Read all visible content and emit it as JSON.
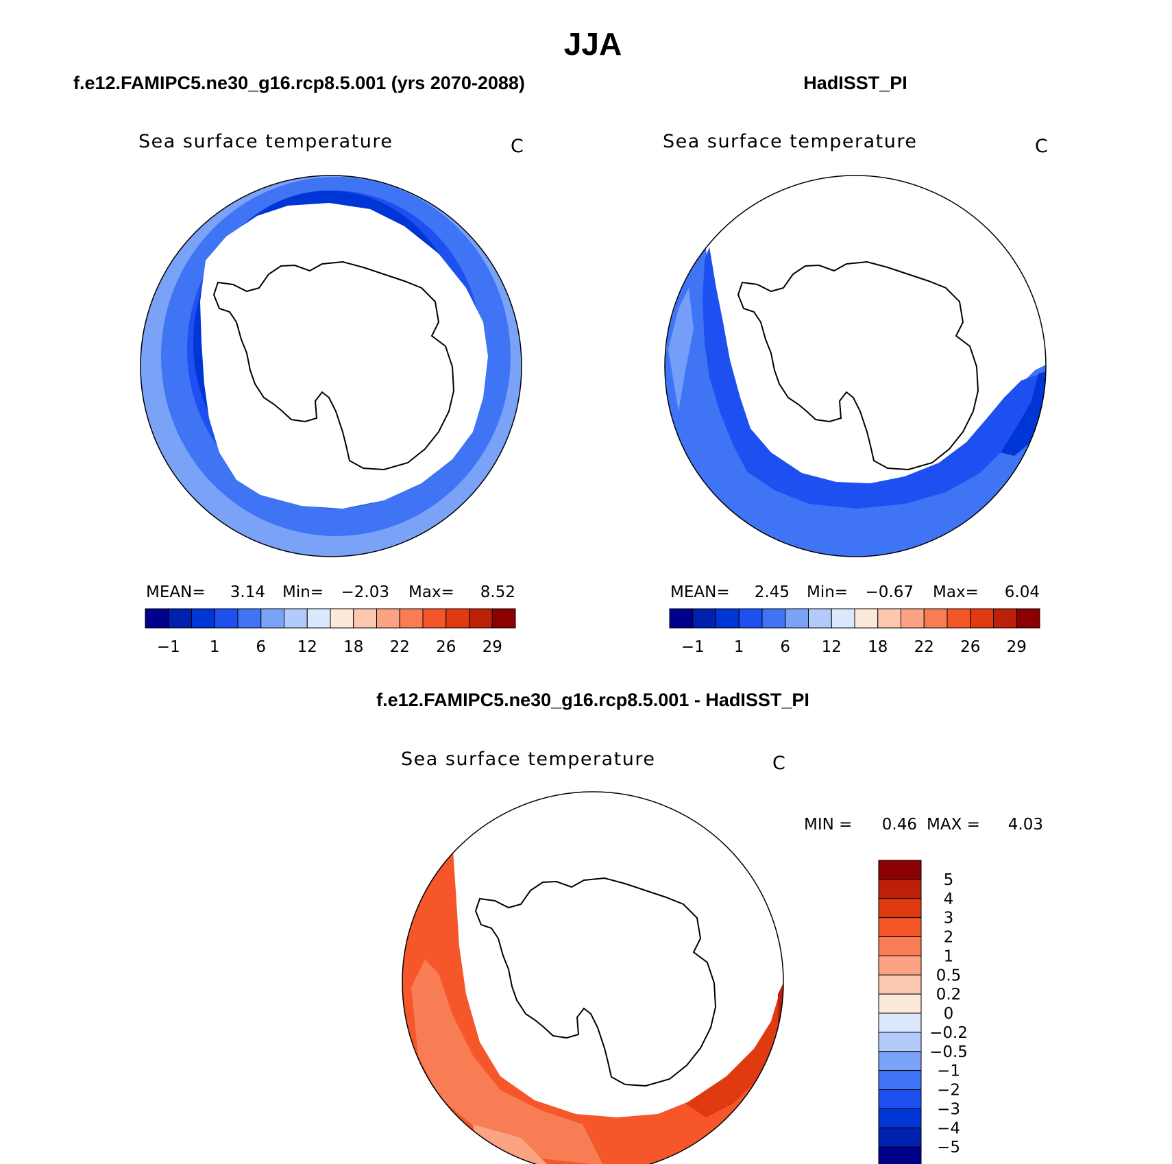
{
  "figure": {
    "title": "JJA"
  },
  "panels": [
    {
      "id": "model",
      "header": "f.e12.FAMIPC5.ne30_g16.rcp8.5.001 (yrs 2070-2088)",
      "variable": "Sea surface temperature",
      "units": "C",
      "stats": {
        "mean_label": "MEAN=",
        "mean": "3.14",
        "min_label": "Min=",
        "min": "−2.03",
        "max_label": "Max=",
        "max": "8.52"
      },
      "colorbar": {
        "orientation": "horizontal",
        "colors": [
          "#00008b",
          "#0020b0",
          "#0035d6",
          "#1e4ff0",
          "#3f74f5",
          "#7aa3f8",
          "#b3cbfb",
          "#dbe8fd",
          "#fde9d9",
          "#fcc9b0",
          "#fba382",
          "#f87d55",
          "#f5572a",
          "#e03a10",
          "#bd2008",
          "#8b0000"
        ],
        "tick_labels": [
          "−1",
          "1",
          "6",
          "12",
          "18",
          "22",
          "26",
          "29"
        ]
      },
      "map_fill": "ring-mostly-blue"
    },
    {
      "id": "obs",
      "header": "HadISST_PI",
      "variable": "Sea surface temperature",
      "units": "C",
      "stats": {
        "mean_label": "MEAN=",
        "mean": "2.45",
        "min_label": "Min=",
        "min": "−0.67",
        "max_label": "Max=",
        "max": "6.04"
      },
      "colorbar": {
        "orientation": "horizontal",
        "colors": [
          "#00008b",
          "#0020b0",
          "#0035d6",
          "#1e4ff0",
          "#3f74f5",
          "#7aa3f8",
          "#b3cbfb",
          "#dbe8fd",
          "#fde9d9",
          "#fcc9b0",
          "#fba382",
          "#f87d55",
          "#f5572a",
          "#e03a10",
          "#bd2008",
          "#8b0000"
        ],
        "tick_labels": [
          "−1",
          "1",
          "6",
          "12",
          "18",
          "22",
          "26",
          "29"
        ]
      },
      "map_fill": "partial-ring-blue"
    },
    {
      "id": "diff",
      "header": "f.e12.FAMIPC5.ne30_g16.rcp8.5.001 - HadISST_PI",
      "variable": "Sea surface temperature",
      "units": "C",
      "stats": {
        "min_label": "MIN =",
        "min": "0.46",
        "max_label": "MAX =",
        "max": "4.03"
      },
      "colorbar": {
        "orientation": "vertical",
        "colors_top_to_bottom": [
          "#8b0000",
          "#bd2008",
          "#e03a10",
          "#f5572a",
          "#f87d55",
          "#fba382",
          "#fcc9b0",
          "#fde9d9",
          "#dbe8fd",
          "#b3cbfb",
          "#7aa3f8",
          "#3f74f5",
          "#1e4ff0",
          "#0035d6",
          "#0020b0",
          "#00008b"
        ],
        "tick_labels_top_to_bottom": [
          "5",
          "4",
          "3",
          "2",
          "1",
          "0.5",
          "0.2",
          "0",
          "−0.2",
          "−0.5",
          "−1",
          "−2",
          "−3",
          "−4",
          "−5"
        ]
      },
      "map_fill": "partial-ring-orange"
    }
  ]
}
